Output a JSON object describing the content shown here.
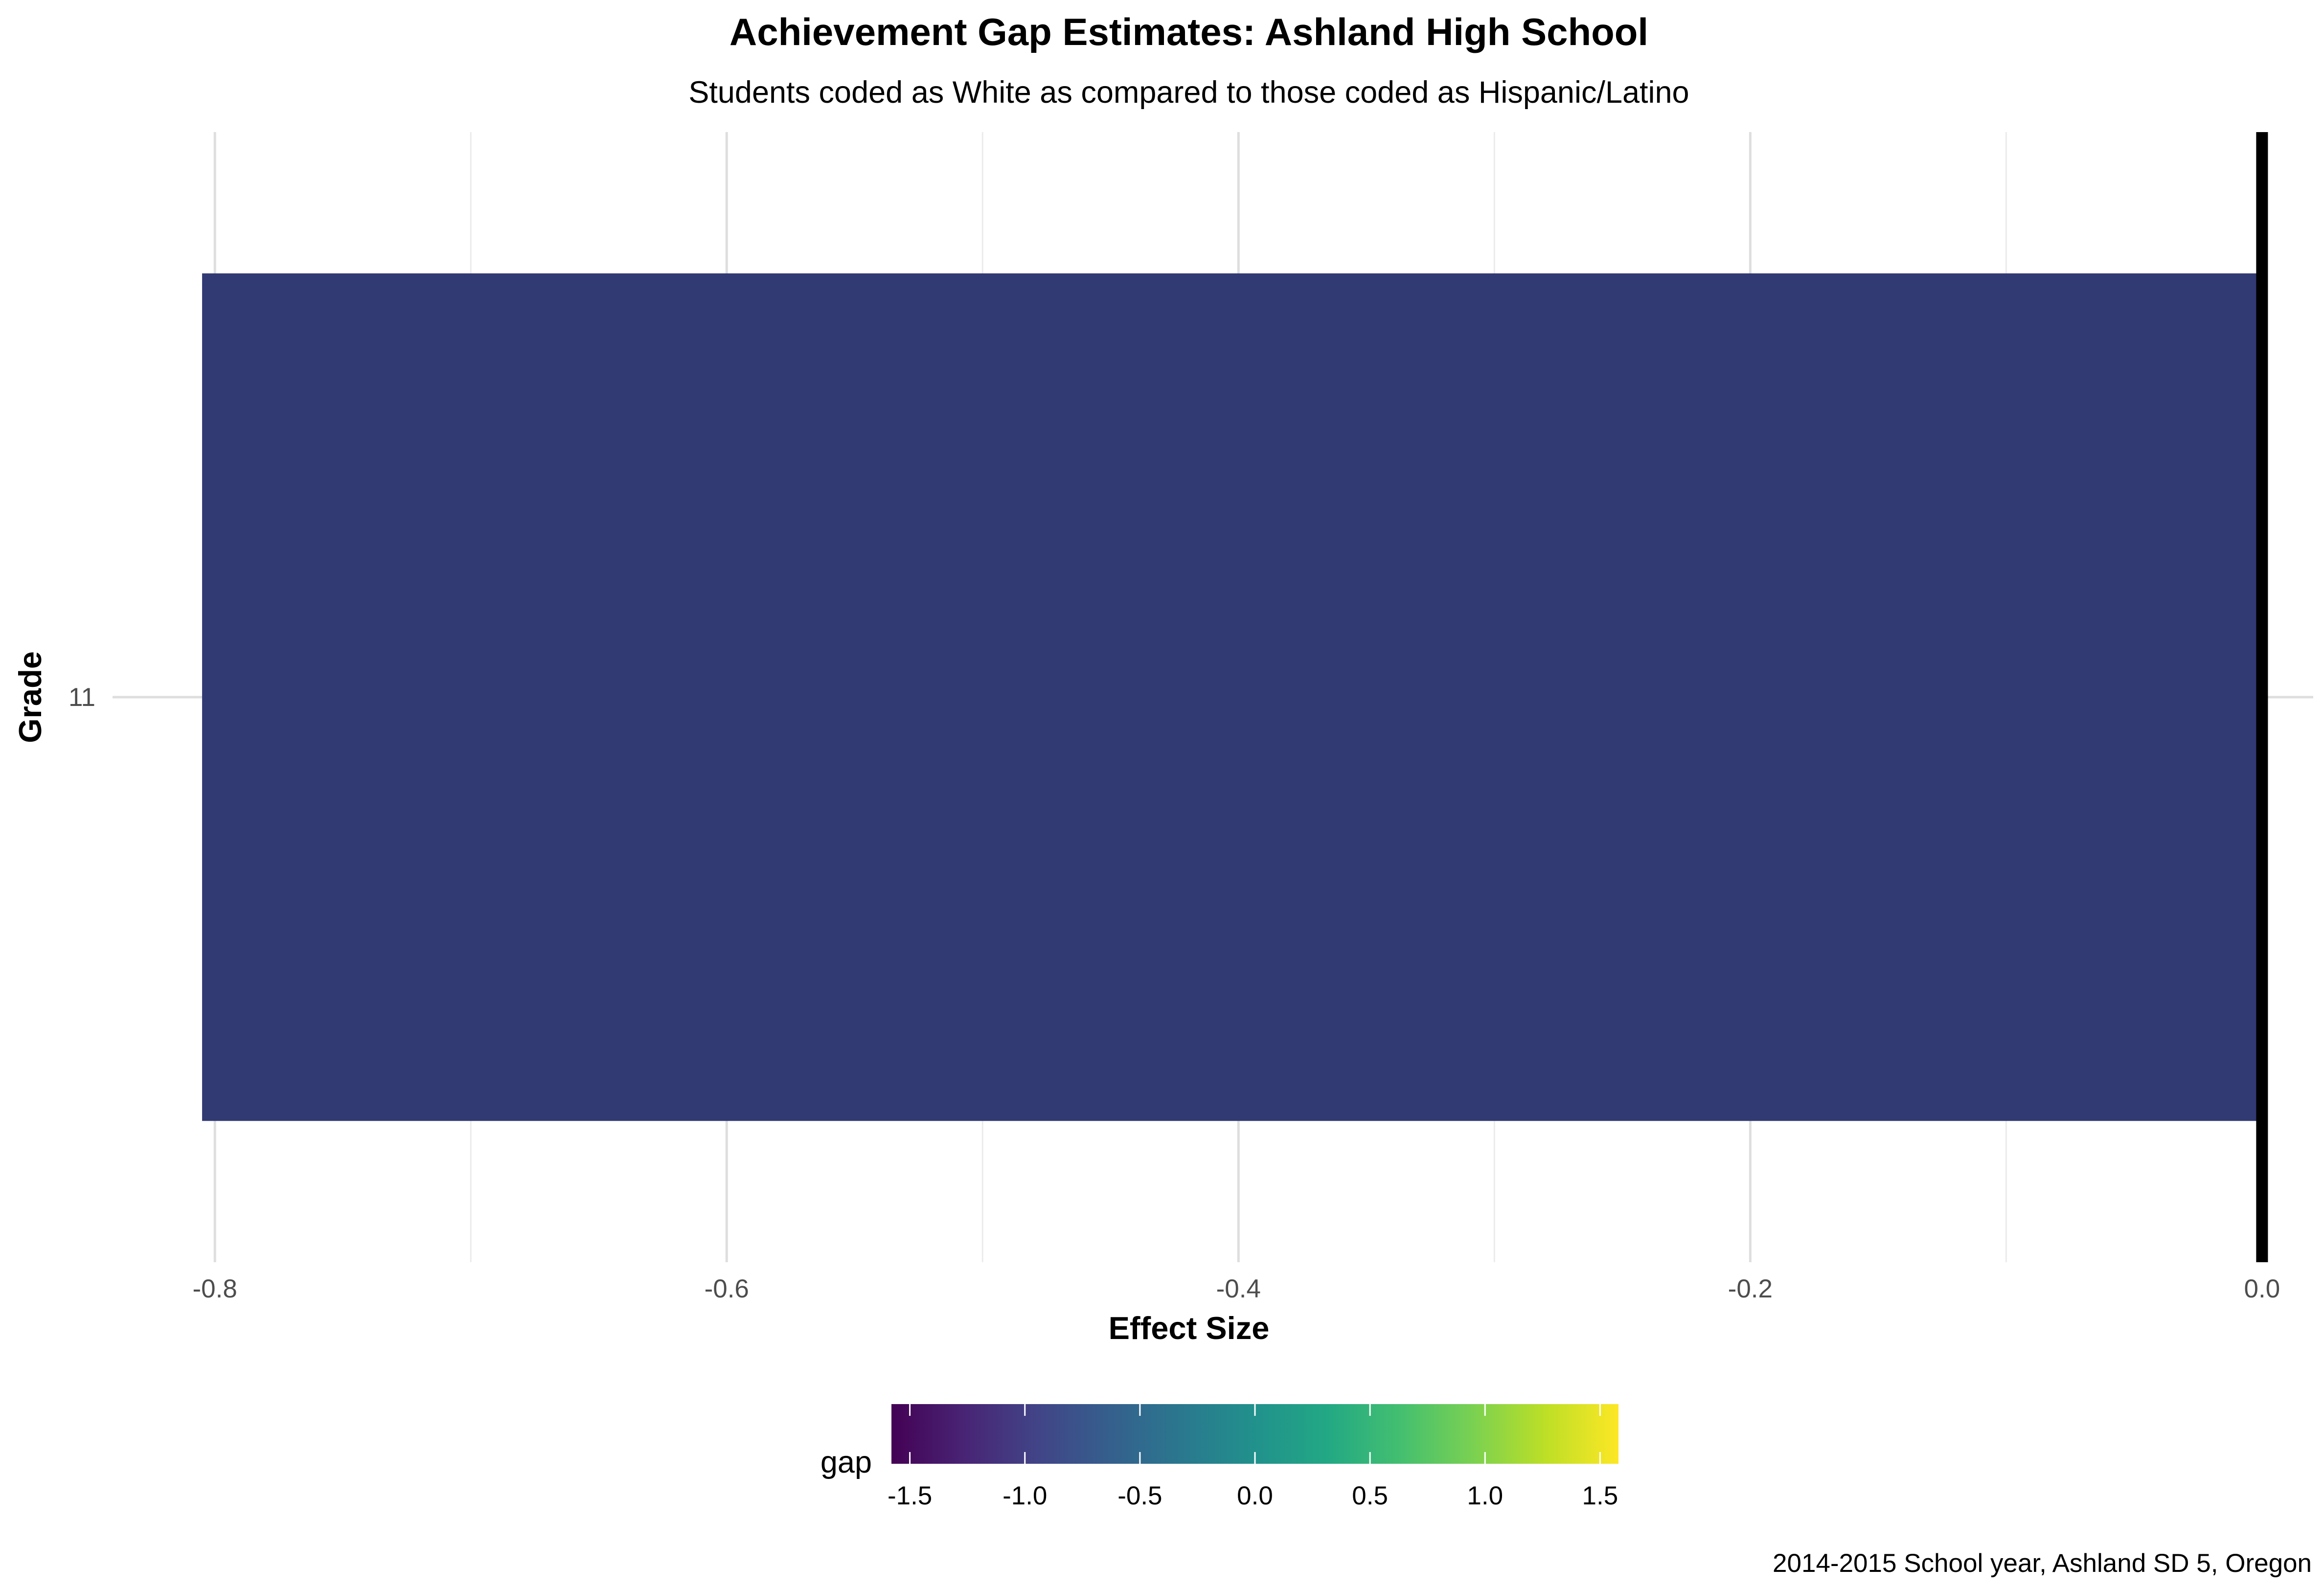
{
  "chart_data": {
    "type": "bar",
    "orientation": "horizontal",
    "title": "Achievement Gap Estimates: Ashland High School",
    "subtitle": "Students coded as White as compared to those coded as Hispanic/Latino",
    "xlabel": "Effect Size",
    "ylabel": "Grade",
    "categories": [
      "11"
    ],
    "values": [
      -0.805
    ],
    "xlim": [
      -0.84,
      0.02
    ],
    "x_ticks": [
      -0.8,
      -0.6,
      -0.4,
      -0.2,
      0.0
    ],
    "x_tick_labels": [
      "-0.8",
      "-0.6",
      "-0.4",
      "-0.2",
      "0.0"
    ],
    "reference_line": 0.0,
    "bar_color": "#323A74",
    "grid": true,
    "legend": {
      "title": "gap",
      "placement": "bottom",
      "type": "colorbar",
      "palette": "viridis",
      "range": [
        -1.58,
        1.58
      ],
      "ticks": [
        -1.5,
        -1.0,
        -0.5,
        0.0,
        0.5,
        1.0,
        1.5
      ],
      "tick_labels": [
        "-1.5",
        "-1.0",
        "-0.5",
        "0.0",
        "0.5",
        "1.0",
        "1.5"
      ]
    },
    "caption": "2014-2015 School year, Ashland SD 5, Oregon"
  }
}
